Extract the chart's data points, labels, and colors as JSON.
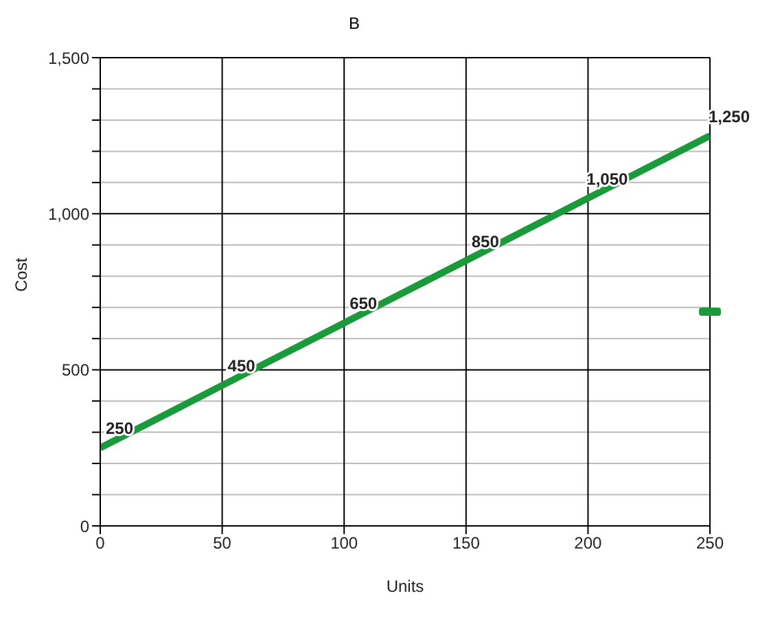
{
  "chart_data": {
    "type": "line",
    "title": "B",
    "xlabel": "Units",
    "ylabel": "Cost",
    "x": [
      0,
      50,
      100,
      150,
      200,
      250
    ],
    "series": [
      {
        "color": "#1a9a3a",
        "values": [
          250,
          450,
          650,
          850,
          1050,
          1250
        ],
        "value_labels": [
          "250",
          "450",
          "650",
          "850",
          "1,050",
          "1,250"
        ]
      }
    ],
    "xlim": [
      0,
      250
    ],
    "xticks": [
      0,
      50,
      100,
      150,
      200,
      250
    ],
    "ylim": [
      0,
      1500
    ],
    "yticks": [
      0,
      {
        "value": 100,
        "label": null
      },
      {
        "value": 200,
        "label": null
      },
      {
        "value": 300,
        "label": null
      },
      {
        "value": 400,
        "label": null
      },
      500,
      {
        "value": 600,
        "label": null
      },
      {
        "value": 700,
        "label": null
      },
      {
        "value": 800,
        "label": null
      },
      {
        "value": 900,
        "label": null
      },
      {
        "value": 1000,
        "label": "1,000"
      },
      {
        "value": 1100,
        "label": null
      },
      {
        "value": 1200,
        "label": null
      },
      {
        "value": 1300,
        "label": null
      },
      {
        "value": 1400,
        "label": null
      },
      {
        "value": 1500,
        "label": "1,500"
      }
    ],
    "grid": true,
    "marker": "none",
    "line_style": "solid"
  }
}
